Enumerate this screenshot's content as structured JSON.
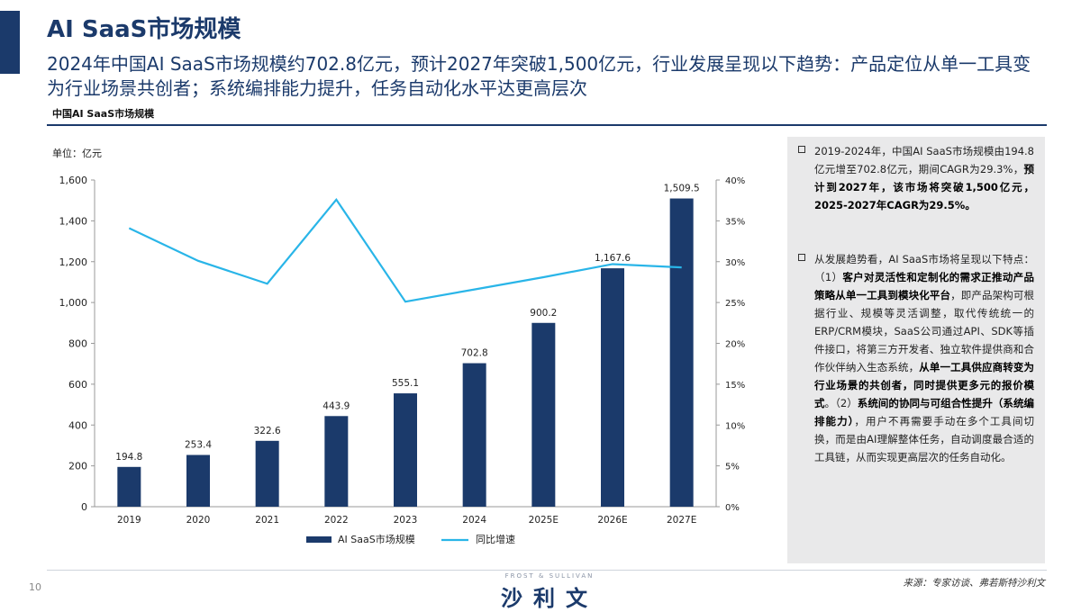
{
  "header": {
    "title": "AI SaaS市场规模",
    "subtitle": "2024年中国AI SaaS市场规模约702.8亿元，预计2027年突破1,500亿元，行业发展呈现以下趋势：产品定位从单一工具变为行业场景共创者；系统编排能力提升，任务自动化水平达更高层次"
  },
  "chart_section_label": "中国AI SaaS市场规模",
  "chart_data": {
    "type": "bar",
    "unit_label": "单位：亿元",
    "categories": [
      "2019",
      "2020",
      "2021",
      "2022",
      "2023",
      "2024",
      "2025E",
      "2026E",
      "2027E"
    ],
    "series": [
      {
        "name": "AI SaaS市场规模",
        "type": "bar",
        "axis": "left",
        "color": "#1b3a6b",
        "values": [
          194.8,
          253.4,
          322.6,
          443.9,
          555.1,
          702.8,
          900.2,
          1167.6,
          1509.5
        ],
        "labels": [
          "194.8",
          "253.4",
          "322.6",
          "443.9",
          "555.1",
          "702.8",
          "900.2",
          "1,167.6",
          "1,509.5"
        ]
      },
      {
        "name": "同比增速",
        "type": "line",
        "axis": "right",
        "color": "#29b5e8",
        "values": [
          34.1,
          30.1,
          27.3,
          37.6,
          25.1,
          26.6,
          28.1,
          29.7,
          29.3
        ]
      }
    ],
    "left_axis": {
      "min": 0,
      "max": 1600,
      "step": 200,
      "tick_labels": [
        "0",
        "200",
        "400",
        "600",
        "800",
        "1,000",
        "1,200",
        "1,400",
        "1,600"
      ]
    },
    "right_axis": {
      "min": 0,
      "max": 40,
      "step": 5,
      "tick_labels": [
        "0%",
        "5%",
        "10%",
        "15%",
        "20%",
        "25%",
        "30%",
        "35%",
        "40%"
      ]
    },
    "legend_position": "bottom",
    "grid": false
  },
  "side_notes": [
    {
      "parts": [
        {
          "text": "2019-2024年，中国AI SaaS市场规模由194.8亿元增至702.8亿元，期间CAGR为29.3%，",
          "bold": false
        },
        {
          "text": "预计到2027年，该市场将突破1,500亿元，2025-2027年CAGR为29.5%。",
          "bold": true
        }
      ]
    },
    {
      "parts": [
        {
          "text": "从发展趋势看，AI SaaS市场将呈现以下特点：（1）",
          "bold": false
        },
        {
          "text": "客户对灵活性和定制化的需求正推动产品策略从单一工具到模块化平台",
          "bold": true
        },
        {
          "text": "，即产品架构可根据行业、规模等灵活调整，取代传统统一的ERP/CRM模块，SaaS公司通过API、SDK等插件接口，将第三方开发者、独立软件提供商和合作伙伴纳入生态系统，",
          "bold": false
        },
        {
          "text": "从单一工具供应商转变为行业场景的共创者，同时提供更多元的报价模式",
          "bold": true
        },
        {
          "text": "。（2）",
          "bold": false
        },
        {
          "text": "系统间的协同与可组合性提升（系统编排能力）",
          "bold": true
        },
        {
          "text": "，用户不再需要手动在多个工具间切换，而是由AI理解整体任务，自动调度最合适的工具链，从而实现更高层次的任务自动化。",
          "bold": false
        }
      ]
    }
  ],
  "footer": {
    "page_number": "10",
    "brand_english": "FROST & SULLIVAN",
    "brand_chinese": "沙利文",
    "source": "来源：专家访谈、弗若斯特沙利文"
  }
}
